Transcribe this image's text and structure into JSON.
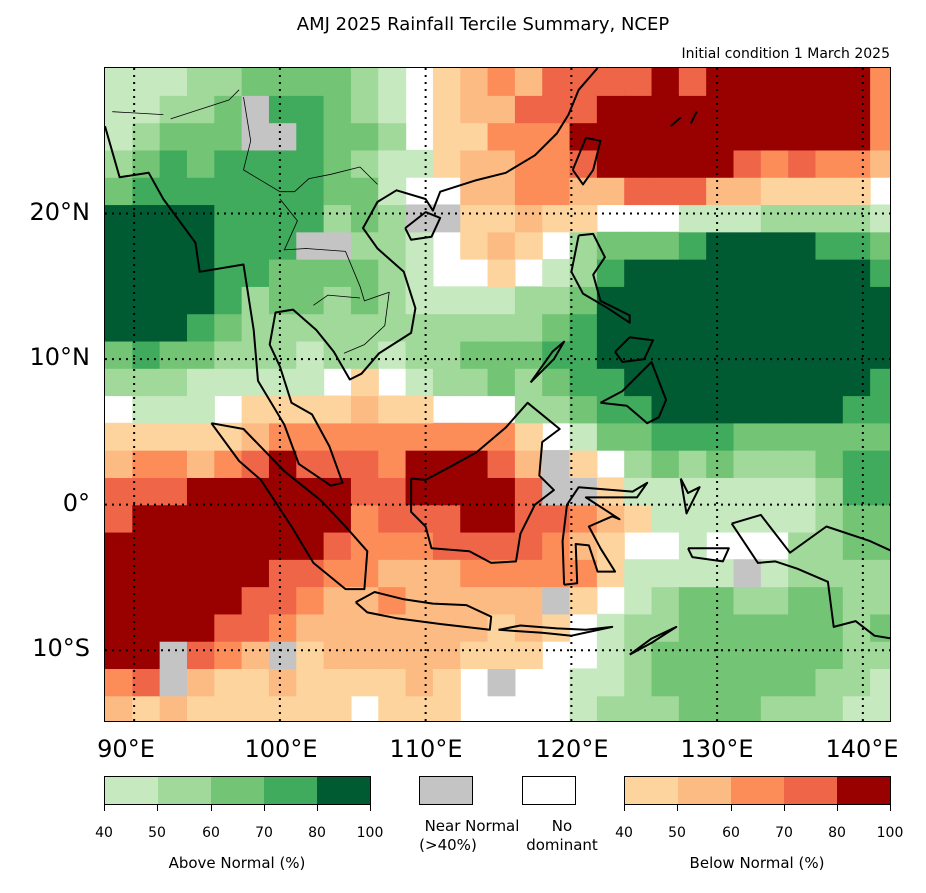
{
  "title": "AMJ 2025 Rainfall Tercile Summary, NCEP",
  "subtitle": "Initial condition 1 March 2025",
  "map": {
    "lon_range": [
      88,
      142
    ],
    "lat_range": [
      -15,
      30
    ],
    "lat_ticks": [
      {
        "value": 20,
        "label": "20°N"
      },
      {
        "value": 10,
        "label": "10°N"
      },
      {
        "value": 0,
        "label": "0°"
      },
      {
        "value": -10,
        "label": "10°S"
      }
    ],
    "lon_ticks": [
      {
        "value": 90,
        "label": "90°E"
      },
      {
        "value": 100,
        "label": "100°E"
      },
      {
        "value": 110,
        "label": "110°E"
      },
      {
        "value": 120,
        "label": "120°E"
      },
      {
        "value": 130,
        "label": "130°E"
      },
      {
        "value": 140,
        "label": "140°E"
      }
    ],
    "gridlines": "dotted"
  },
  "legend": {
    "above": {
      "colors": [
        "#c7e9c0",
        "#a1d99b",
        "#74c476",
        "#41ab5d",
        "#005a32"
      ],
      "ticks": [
        "40",
        "50",
        "60",
        "70",
        "80",
        "100"
      ],
      "label": "Above Normal (%)"
    },
    "near_normal": {
      "color": "#c4c4c4",
      "label_line1": "Near Normal",
      "label_line2": "(>40%)"
    },
    "no_dominant": {
      "color": "#ffffff",
      "label_line1": "No",
      "label_line2": "dominant"
    },
    "below": {
      "colors": [
        "#fdd49e",
        "#fdbb84",
        "#fc8d59",
        "#ef6548",
        "#990000"
      ],
      "ticks": [
        "40",
        "50",
        "60",
        "70",
        "80",
        "100"
      ],
      "label": "Below Normal (%)"
    }
  }
}
